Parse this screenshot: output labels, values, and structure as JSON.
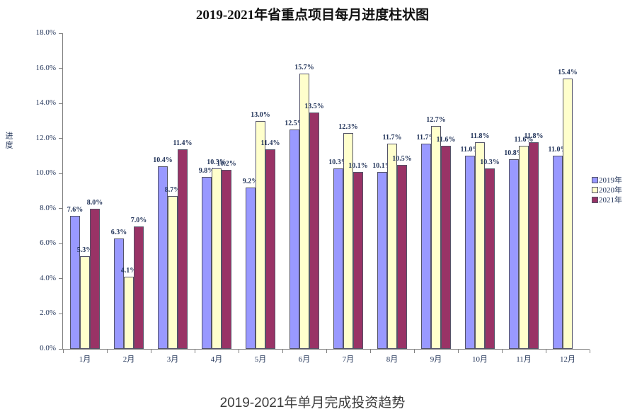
{
  "title": "2019-2021年省重点项目每月进度柱状图",
  "caption": "2019-2021年单月完成投资趋势",
  "chart_data": {
    "type": "bar",
    "title": "2019-2021年省重点项目每月进度柱状图",
    "ylabel": "进度",
    "xlabel": "",
    "unit": "%",
    "ylim": [
      0,
      18
    ],
    "ytick_step": 2,
    "grid": false,
    "legend_position": "right",
    "categories": [
      "1月",
      "2月",
      "3月",
      "4月",
      "5月",
      "6月",
      "7月",
      "8月",
      "9月",
      "10月",
      "11月",
      "12月"
    ],
    "series": [
      {
        "name": "2019年",
        "color": "#9999FF",
        "values": [
          7.6,
          6.3,
          10.4,
          9.8,
          9.2,
          12.5,
          10.3,
          10.1,
          11.7,
          11.0,
          10.8,
          11.0
        ]
      },
      {
        "name": "2020年",
        "color": "#FFFFCC",
        "values": [
          5.3,
          4.1,
          8.7,
          10.3,
          13.0,
          15.7,
          12.3,
          11.7,
          12.7,
          11.8,
          11.6,
          15.4
        ]
      },
      {
        "name": "2021年",
        "color": "#993366",
        "values": [
          8.0,
          7.0,
          11.4,
          10.2,
          11.4,
          13.5,
          10.1,
          10.5,
          11.6,
          10.3,
          11.8,
          null
        ]
      }
    ]
  },
  "colors": {
    "axis": "#808080",
    "label_text": "#22345a",
    "caption_text": "#3c3c3c"
  }
}
